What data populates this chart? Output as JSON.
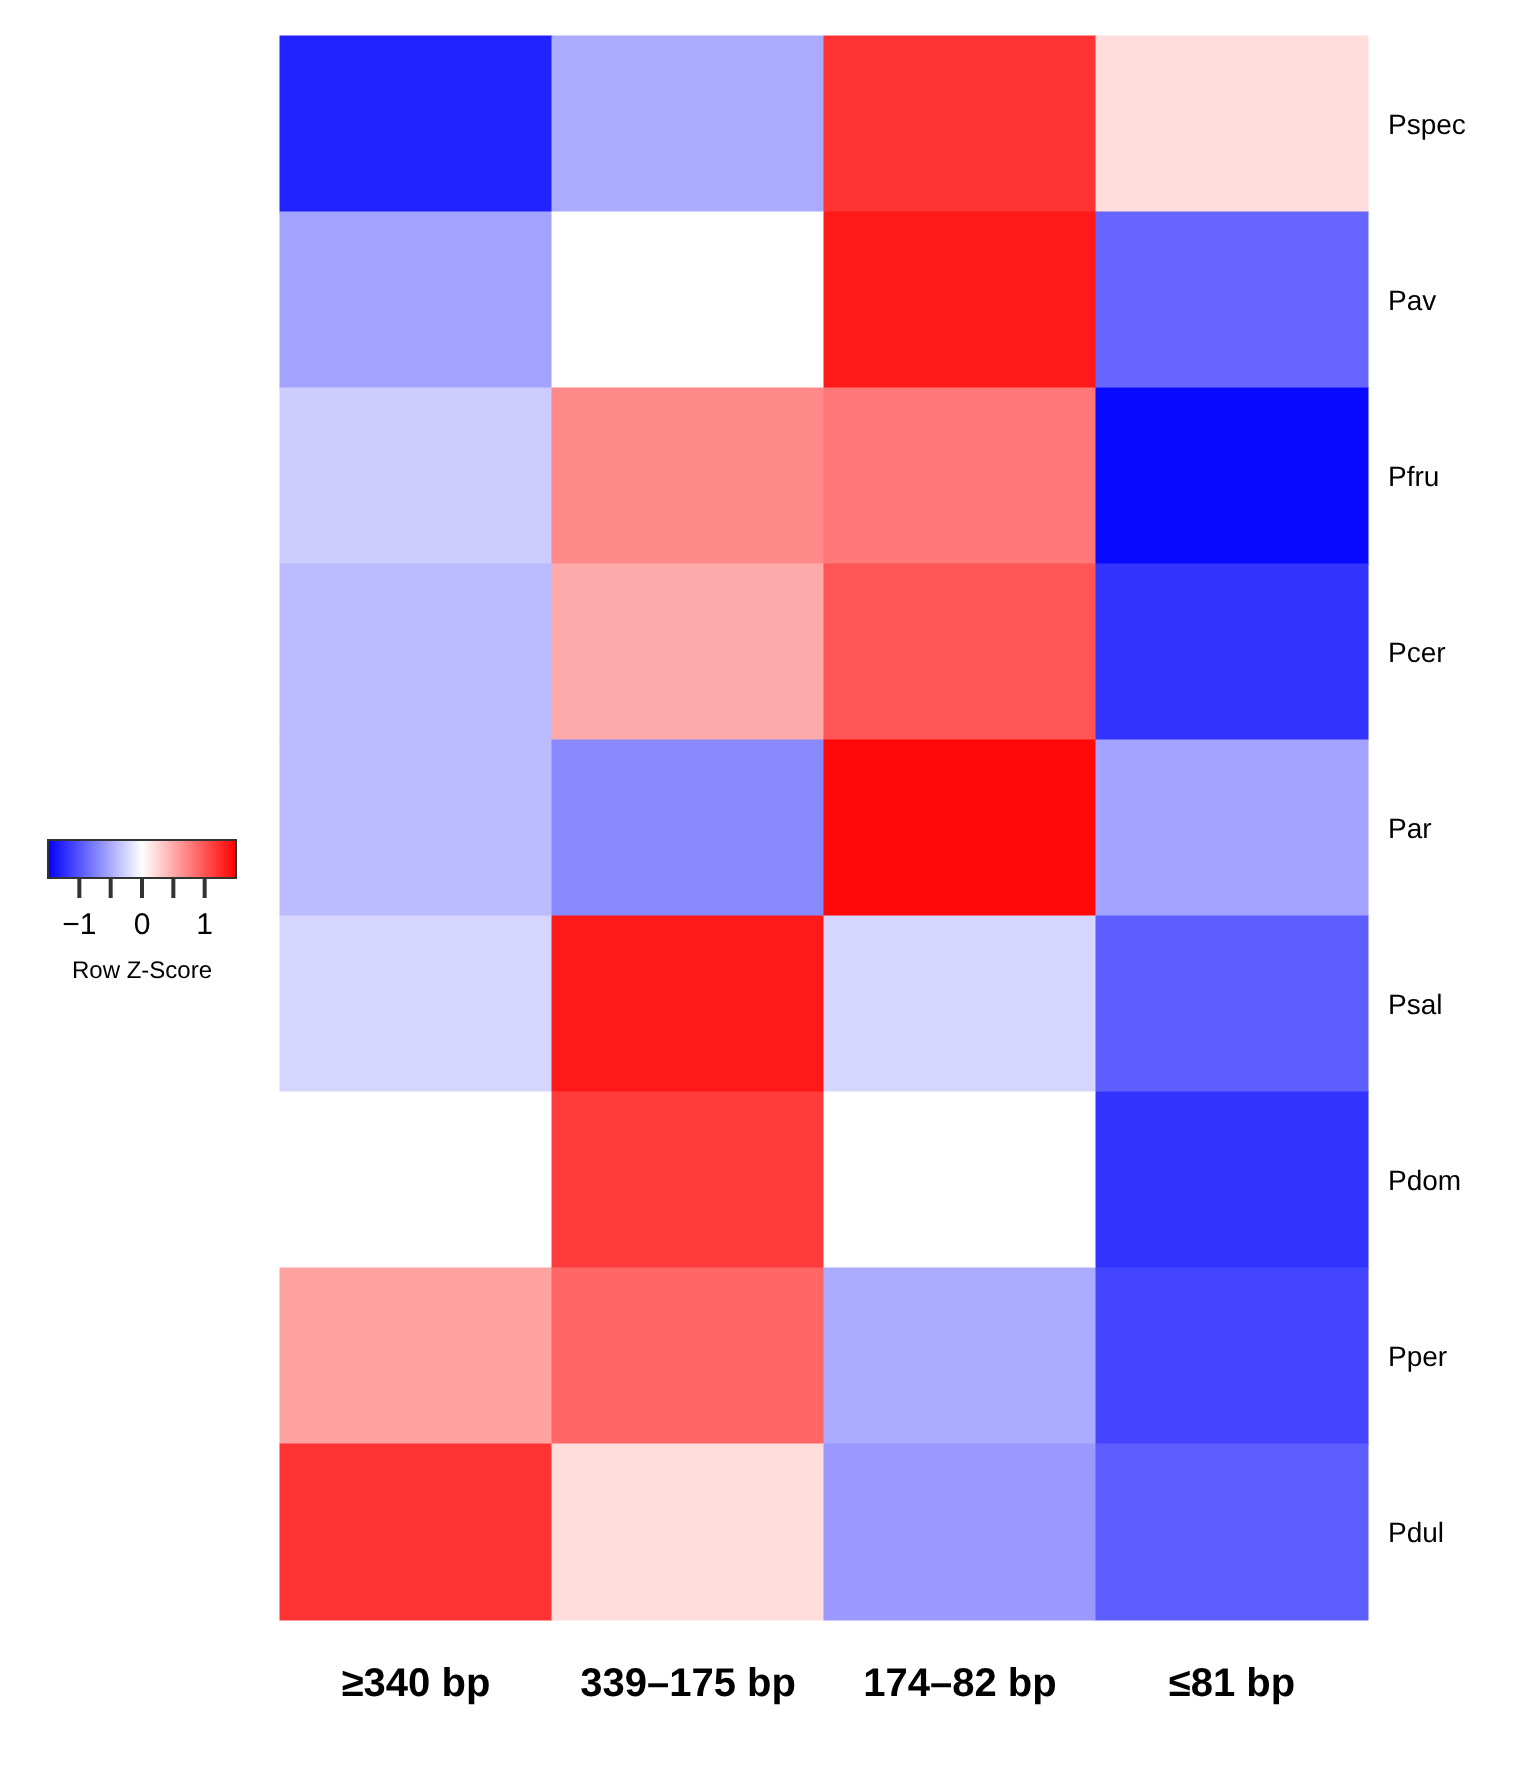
{
  "chart_data": {
    "type": "heatmap",
    "categories": [
      "≥340 bp",
      "339–175 bp",
      "174–82 bp",
      "≤81 bp"
    ],
    "y_categories": [
      "Pspec",
      "Pav",
      "Pfru",
      "Pcer",
      "Par",
      "Psal",
      "Pdom",
      "Pper",
      "Pdul"
    ],
    "cells": [
      [
        -1.3,
        -0.5,
        1.2,
        0.2
      ],
      [
        -0.55,
        0.0,
        1.35,
        -0.9
      ],
      [
        -0.3,
        0.7,
        0.8,
        -1.45
      ],
      [
        -0.4,
        0.5,
        1.0,
        -1.2
      ],
      [
        -0.4,
        -0.7,
        1.45,
        -0.55
      ],
      [
        -0.25,
        1.35,
        -0.25,
        -0.95
      ],
      [
        0.0,
        1.15,
        0.0,
        -1.2
      ],
      [
        0.55,
        0.9,
        -0.5,
        -1.1
      ],
      [
        1.2,
        0.2,
        -0.6,
        -0.95
      ]
    ],
    "clabel": "Row Z-Score",
    "clim": [
      -1.5,
      1.5
    ],
    "cticks": [
      {
        "value": -1,
        "label": "−1"
      },
      {
        "value": -0.5,
        "label": null
      },
      0,
      {
        "value": 0.5,
        "label": null
      },
      1
    ]
  }
}
